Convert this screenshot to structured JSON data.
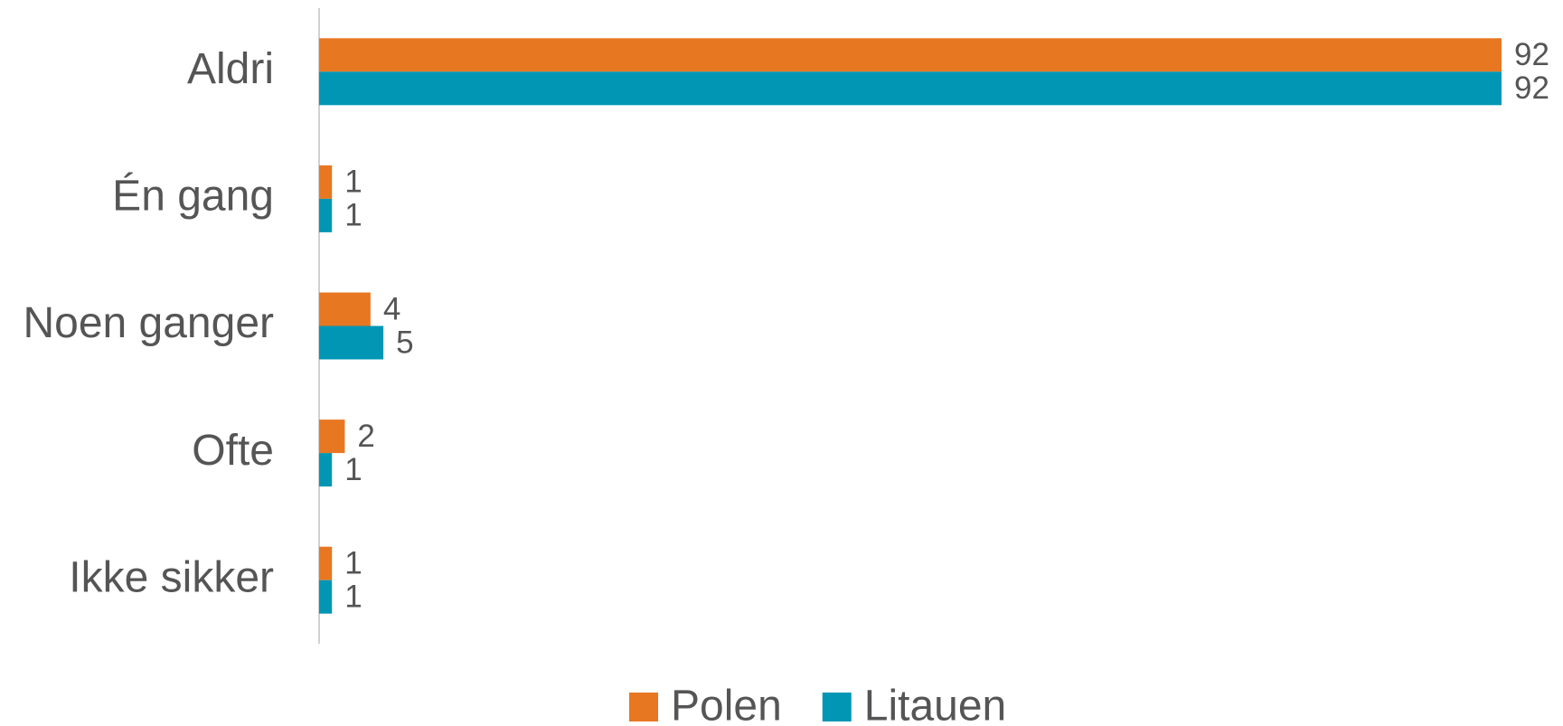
{
  "chart_data": {
    "type": "bar",
    "orientation": "horizontal",
    "categories": [
      "Aldri",
      "Én gang",
      "Noen ganger",
      "Ofte",
      "Ikke sikker"
    ],
    "series": [
      {
        "name": "Polen",
        "color": "#e87722",
        "values": [
          92,
          1,
          4,
          2,
          1
        ]
      },
      {
        "name": "Litauen",
        "color": "#0096b4",
        "values": [
          92,
          1,
          5,
          1,
          1
        ]
      }
    ],
    "legend": "bottom"
  }
}
